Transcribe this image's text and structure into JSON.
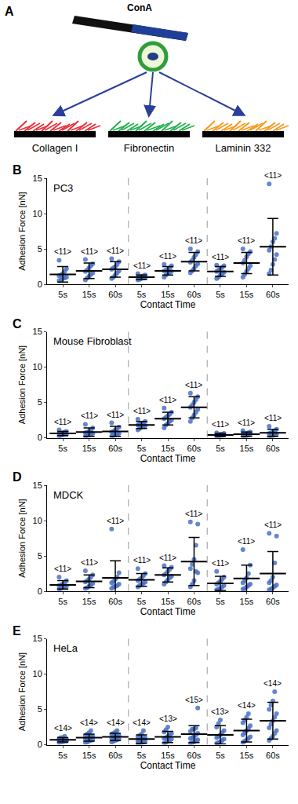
{
  "diagram": {
    "panel": "A",
    "probe_label": "ConA",
    "substrates": [
      {
        "label": "Collagen I",
        "color": "#e8303a"
      },
      {
        "label": "Fibronectin",
        "color": "#22b04c"
      },
      {
        "label": "Laminin 332",
        "color": "#f39a1e"
      }
    ]
  },
  "chart_data": [
    {
      "type": "scatter",
      "panel": "B",
      "title": "PC3",
      "x_label": "Contact Time",
      "y_label": "Adhesion Force [nN]",
      "categories": [
        "5s",
        "15s",
        "60s",
        "5s",
        "15s",
        "60s",
        "5s",
        "15s",
        "60s"
      ],
      "ylim": [
        0,
        15
      ],
      "yticks": [
        0,
        5,
        10,
        15
      ],
      "color": "#4a72c6",
      "points": [
        [
          0.5,
          0.6,
          0.8,
          0.9,
          1.0,
          1.2,
          1.3,
          1.5,
          1.8,
          2.2,
          3.4
        ],
        [
          0.6,
          0.9,
          1.1,
          1.4,
          1.6,
          1.8,
          2.0,
          2.3,
          2.6,
          2.9,
          3.5
        ],
        [
          0.8,
          1.0,
          1.3,
          1.6,
          1.9,
          2.1,
          2.3,
          2.5,
          2.8,
          3.2,
          3.6
        ],
        [
          0.6,
          0.7,
          0.8,
          0.9,
          0.9,
          1.0,
          1.0,
          1.1,
          1.2,
          1.3,
          1.5
        ],
        [
          1.0,
          1.3,
          1.5,
          1.7,
          1.8,
          1.9,
          2.0,
          2.1,
          2.3,
          2.6,
          2.8
        ],
        [
          1.6,
          1.9,
          2.2,
          2.6,
          2.9,
          3.1,
          3.4,
          3.8,
          4.2,
          4.6,
          5.0
        ],
        [
          0.8,
          1.0,
          1.3,
          1.5,
          1.7,
          1.8,
          2.0,
          2.2,
          2.4,
          2.6,
          2.7
        ],
        [
          1.0,
          1.4,
          1.8,
          2.2,
          2.6,
          3.0,
          3.4,
          3.9,
          4.3,
          4.6,
          5.0
        ],
        [
          1.5,
          2.0,
          2.8,
          3.5,
          4.2,
          4.8,
          5.3,
          6.0,
          6.5,
          7.2,
          14.2
        ]
      ],
      "means": [
        1.4,
        1.9,
        2.1,
        1.0,
        1.9,
        3.2,
        1.8,
        3.0,
        5.3
      ],
      "sd": [
        1.1,
        1.1,
        1.1,
        0.3,
        0.6,
        1.3,
        0.7,
        1.5,
        4.0
      ],
      "n_labels": [
        "<11>",
        "<11>",
        "<11>",
        "<11>",
        "<11>",
        "<11>",
        "<11>",
        "<11>",
        "<11>"
      ]
    },
    {
      "type": "scatter",
      "panel": "C",
      "title": "Mouse Fibroblast",
      "x_label": "Contact Time",
      "y_label": "Adhesion Force [nN]",
      "categories": [
        "5s",
        "15s",
        "60s",
        "5s",
        "15s",
        "60s",
        "5s",
        "15s",
        "60s"
      ],
      "ylim": [
        0,
        15
      ],
      "yticks": [
        0,
        5,
        10,
        15
      ],
      "color": "#4a72c6",
      "points": [
        [
          0.2,
          0.3,
          0.4,
          0.5,
          0.5,
          0.6,
          0.6,
          0.7,
          0.8,
          0.9,
          1.1
        ],
        [
          0.2,
          0.3,
          0.4,
          0.5,
          0.6,
          0.7,
          0.8,
          0.9,
          1.0,
          1.4,
          1.9
        ],
        [
          0.2,
          0.3,
          0.4,
          0.5,
          0.6,
          0.8,
          0.9,
          1.1,
          1.3,
          1.5,
          2.1
        ],
        [
          1.1,
          1.3,
          1.5,
          1.6,
          1.7,
          1.8,
          1.9,
          2.0,
          2.1,
          2.3,
          2.6
        ],
        [
          1.4,
          1.8,
          2.0,
          2.3,
          2.5,
          2.7,
          2.9,
          3.1,
          3.3,
          3.6,
          4.2
        ],
        [
          2.3,
          2.8,
          3.2,
          3.6,
          4.0,
          4.3,
          4.6,
          5.0,
          5.4,
          5.8,
          6.3
        ],
        [
          0.1,
          0.2,
          0.3,
          0.3,
          0.4,
          0.4,
          0.4,
          0.5,
          0.5,
          0.6,
          0.7
        ],
        [
          0.1,
          0.2,
          0.3,
          0.4,
          0.5,
          0.5,
          0.5,
          0.6,
          0.7,
          0.8,
          1.0
        ],
        [
          0.1,
          0.2,
          0.3,
          0.4,
          0.5,
          0.6,
          0.7,
          0.8,
          1.0,
          1.2,
          1.6
        ]
      ],
      "means": [
        0.6,
        0.8,
        0.9,
        1.8,
        2.7,
        4.3,
        0.4,
        0.5,
        0.7
      ],
      "sd": [
        0.3,
        0.6,
        0.7,
        0.5,
        0.9,
        1.5,
        0.2,
        0.3,
        0.5
      ],
      "n_labels": [
        "<11>",
        "<11>",
        "<11>",
        "<11>",
        "<11>",
        "<11>",
        "<11>",
        "<11>",
        "<11>"
      ]
    },
    {
      "type": "scatter",
      "panel": "D",
      "title": "MDCK",
      "x_label": "Contact Time",
      "y_label": "Adhesion Force [nN]",
      "categories": [
        "5s",
        "15s",
        "60s",
        "5s",
        "15s",
        "60s",
        "5s",
        "15s",
        "60s"
      ],
      "ylim": [
        0,
        15
      ],
      "yticks": [
        0,
        5,
        10,
        15
      ],
      "color": "#4a72c6",
      "points": [
        [
          0.3,
          0.4,
          0.5,
          0.6,
          0.7,
          0.8,
          0.9,
          1.0,
          1.2,
          1.5,
          2.0
        ],
        [
          0.4,
          0.5,
          0.7,
          0.9,
          1.1,
          1.3,
          1.5,
          1.7,
          2.0,
          2.3,
          2.9
        ],
        [
          0.4,
          0.6,
          0.7,
          0.8,
          1.0,
          1.2,
          1.4,
          1.7,
          2.0,
          2.6,
          8.8
        ],
        [
          0.6,
          0.8,
          1.0,
          1.1,
          1.3,
          1.5,
          1.7,
          1.9,
          2.2,
          2.5,
          3.2
        ],
        [
          1.0,
          1.3,
          1.6,
          1.9,
          2.1,
          2.3,
          2.5,
          2.8,
          3.1,
          3.4,
          3.6
        ],
        [
          0.6,
          1.0,
          1.5,
          2.8,
          2.6,
          3.2,
          3.8,
          4.5,
          6.5,
          9.5,
          9.8
        ],
        [
          0.2,
          0.3,
          0.4,
          0.6,
          0.8,
          1.0,
          1.2,
          1.4,
          1.7,
          2.0,
          2.8
        ],
        [
          0.3,
          0.4,
          0.6,
          0.8,
          1.0,
          1.2,
          1.5,
          1.9,
          2.5,
          3.7,
          5.9
        ],
        [
          0.2,
          0.3,
          0.5,
          0.7,
          0.9,
          1.2,
          1.5,
          2.0,
          4.0,
          7.8,
          8.2
        ]
      ],
      "means": [
        0.9,
        1.4,
        1.9,
        1.6,
        2.3,
        4.2,
        1.1,
        1.8,
        2.5
      ],
      "sd": [
        0.6,
        0.9,
        2.4,
        0.9,
        1.0,
        3.4,
        1.0,
        1.9,
        3.1
      ],
      "n_labels": [
        "<11>",
        "<11>",
        "<11>",
        "<11>",
        "<11>",
        "<11>",
        "<11>",
        "<11>",
        "<11>"
      ]
    },
    {
      "type": "scatter",
      "panel": "E",
      "title": "HeLa",
      "x_label": "Contact Time",
      "y_label": "Adhesion Force [nN]",
      "categories": [
        "5s",
        "15s",
        "60s",
        "5s",
        "15s",
        "60s",
        "5s",
        "15s",
        "60s"
      ],
      "ylim": [
        0,
        15
      ],
      "yticks": [
        0,
        5,
        10,
        15
      ],
      "color": "#4a72c6",
      "points": [
        [
          0.3,
          0.4,
          0.4,
          0.5,
          0.5,
          0.6,
          0.7,
          0.7,
          0.8,
          0.8,
          0.9,
          1.0,
          1.0,
          1.2
        ],
        [
          0.3,
          0.4,
          0.5,
          0.6,
          0.7,
          0.8,
          0.9,
          1.0,
          1.1,
          1.2,
          1.3,
          1.5,
          1.7,
          2.0
        ],
        [
          0.4,
          0.5,
          0.6,
          0.7,
          0.8,
          0.9,
          1.0,
          1.1,
          1.2,
          1.3,
          1.5,
          1.6,
          1.8,
          2.0
        ],
        [
          0.2,
          0.3,
          0.3,
          0.4,
          0.5,
          0.6,
          0.7,
          0.8,
          0.9,
          1.0,
          1.1,
          1.3,
          1.5,
          2.0
        ],
        [
          0.2,
          0.3,
          0.5,
          0.6,
          0.8,
          0.9,
          1.0,
          1.2,
          1.4,
          1.6,
          1.8,
          2.1,
          2.5
        ],
        [
          0.2,
          0.3,
          0.4,
          0.6,
          0.7,
          0.9,
          1.0,
          1.2,
          1.4,
          1.6,
          1.9,
          2.2,
          2.2,
          2.4,
          5.2
        ],
        [
          0.2,
          0.3,
          0.4,
          0.6,
          0.8,
          1.0,
          1.2,
          1.4,
          1.7,
          2.0,
          2.5,
          3.0,
          3.5
        ],
        [
          0.3,
          0.5,
          0.7,
          0.9,
          1.1,
          1.4,
          1.7,
          2.0,
          2.3,
          2.7,
          3.1,
          3.5,
          3.9,
          4.4
        ],
        [
          0.6,
          0.9,
          1.2,
          1.6,
          2.0,
          2.4,
          2.9,
          3.4,
          3.9,
          4.4,
          5.0,
          5.6,
          6.2,
          7.5
        ]
      ],
      "means": [
        0.7,
        1.0,
        1.1,
        0.8,
        1.1,
        1.5,
        1.4,
        2.0,
        3.4
      ],
      "sd": [
        0.3,
        0.5,
        0.5,
        0.6,
        0.8,
        1.2,
        1.3,
        1.6,
        2.6
      ],
      "n_labels": [
        "<14>",
        "<14>",
        "<14>",
        "<14>",
        "<13>",
        "<15>",
        "<13>",
        "<14>",
        "<14>"
      ]
    }
  ]
}
